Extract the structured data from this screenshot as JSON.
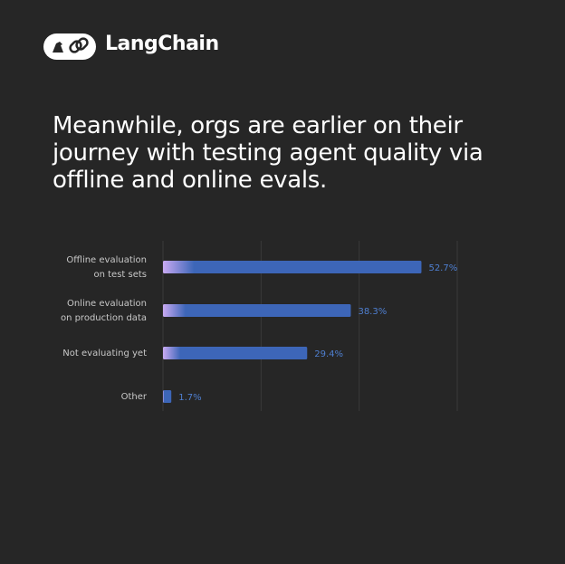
{
  "brand": "LangChain",
  "chart_data": {
    "type": "bar",
    "orientation": "horizontal",
    "title": "Meanwhile, orgs are earlier on their journey with testing agent quality via offline and online evals.",
    "categories": [
      [
        "Offline evaluation",
        "on test sets"
      ],
      [
        "Online evaluation",
        "on production data"
      ],
      [
        "Not evaluating yet"
      ],
      [
        "Other"
      ]
    ],
    "values": [
      52.7,
      38.3,
      29.4,
      1.7
    ],
    "value_labels": [
      "52.7%",
      "38.3%",
      "29.4%",
      "1.7%"
    ],
    "color": "#3d66b8",
    "xlim": [
      0,
      60
    ],
    "xticks": [
      0,
      20,
      40,
      60
    ],
    "grid": true
  }
}
